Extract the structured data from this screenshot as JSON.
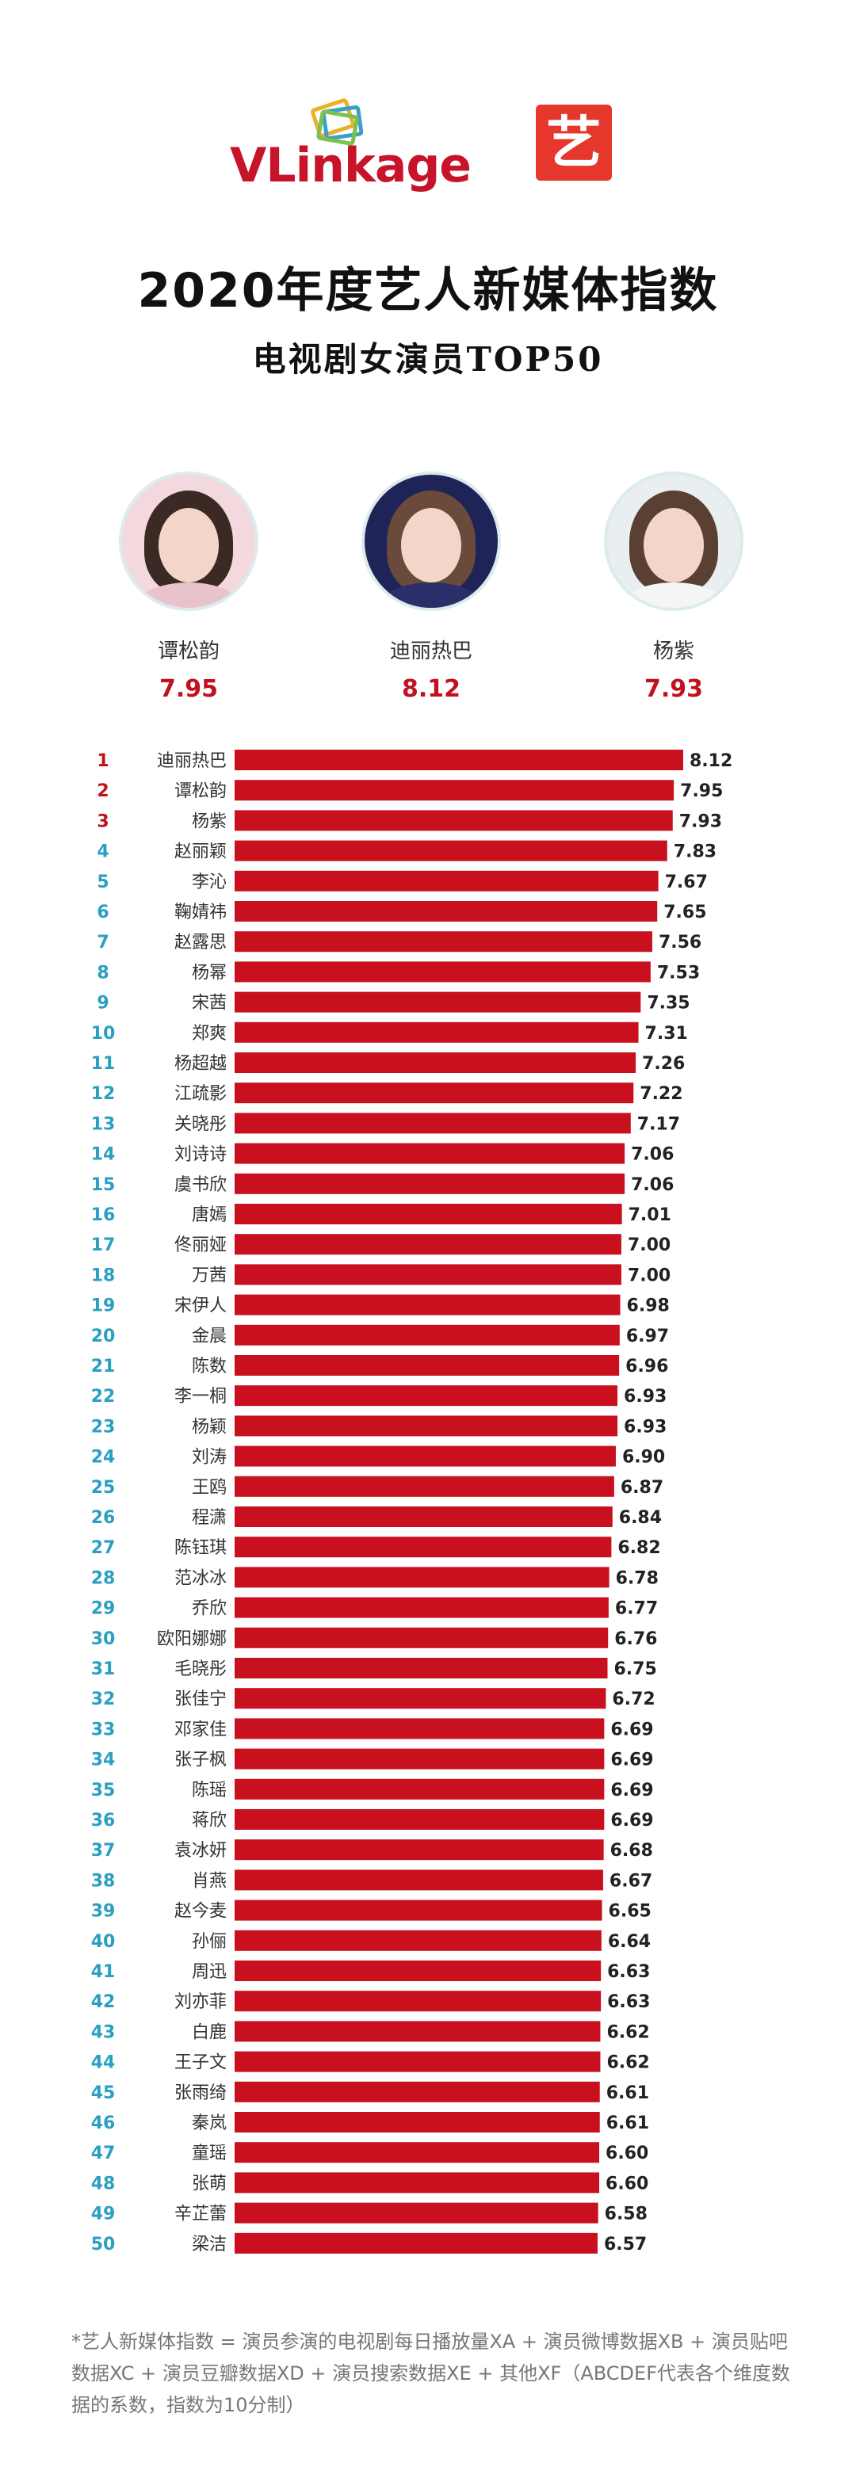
{
  "brand": {
    "logo_text": "VLinkage",
    "logo_mark_colors": [
      "#e8b12a",
      "#3aa0c8",
      "#7bc14b",
      "#e6372c"
    ],
    "partner_logo_char": "艺",
    "accent_color": "#c0111c"
  },
  "title": "2020年度艺人新媒体指数",
  "subtitle": "电视剧女演员TOP50",
  "podium": [
    {
      "name": "谭松韵",
      "score": "7.95",
      "place": 2,
      "hair": "#3b2a24",
      "bg": "#f3d8dd",
      "body": "#e9c3cc"
    },
    {
      "name": "迪丽热巴",
      "score": "8.12",
      "place": 1,
      "hair": "#6a4a3a",
      "bg": "#1e2458",
      "body": "#2a2f6a"
    },
    {
      "name": "杨紫",
      "score": "7.93",
      "place": 3,
      "hair": "#5a4032",
      "bg": "#e9eef0",
      "body": "#f5f5f5"
    }
  ],
  "chart_data": {
    "type": "bar",
    "orientation": "horizontal",
    "title": "电视剧女演员TOP50",
    "ranks": [
      1,
      2,
      3,
      4,
      5,
      6,
      7,
      8,
      9,
      10,
      11,
      12,
      13,
      14,
      15,
      16,
      17,
      18,
      19,
      20,
      21,
      22,
      23,
      24,
      25,
      26,
      27,
      28,
      29,
      30,
      31,
      32,
      33,
      34,
      35,
      36,
      37,
      38,
      39,
      40,
      41,
      42,
      43,
      44,
      45,
      46,
      47,
      48,
      49,
      50
    ],
    "categories": [
      "迪丽热巴",
      "谭松韵",
      "杨紫",
      "赵丽颖",
      "李沁",
      "鞠婧祎",
      "赵露思",
      "杨幂",
      "宋茜",
      "郑爽",
      "杨超越",
      "江疏影",
      "关晓彤",
      "刘诗诗",
      "虞书欣",
      "唐嫣",
      "佟丽娅",
      "万茜",
      "宋伊人",
      "金晨",
      "陈数",
      "李一桐",
      "杨颖",
      "刘涛",
      "王鸥",
      "程潇",
      "陈钰琪",
      "范冰冰",
      "乔欣",
      "欧阳娜娜",
      "毛晓彤",
      "张佳宁",
      "邓家佳",
      "张子枫",
      "陈瑶",
      "蒋欣",
      "袁冰妍",
      "肖燕",
      "赵今麦",
      "孙俪",
      "周迅",
      "刘亦菲",
      "白鹿",
      "王子文",
      "张雨绮",
      "秦岚",
      "童瑶",
      "张萌",
      "辛芷蕾",
      "梁洁"
    ],
    "values": [
      8.12,
      7.95,
      7.93,
      7.83,
      7.67,
      7.65,
      7.56,
      7.53,
      7.35,
      7.31,
      7.26,
      7.22,
      7.17,
      7.06,
      7.06,
      7.01,
      7.0,
      7.0,
      6.98,
      6.97,
      6.96,
      6.93,
      6.93,
      6.9,
      6.87,
      6.84,
      6.82,
      6.78,
      6.77,
      6.76,
      6.75,
      6.72,
      6.69,
      6.69,
      6.69,
      6.69,
      6.68,
      6.67,
      6.65,
      6.64,
      6.63,
      6.63,
      6.62,
      6.62,
      6.61,
      6.61,
      6.6,
      6.6,
      6.58,
      6.57
    ],
    "value_labels": [
      "8.12",
      "7.95",
      "7.93",
      "7.83",
      "7.67",
      "7.65",
      "7.56",
      "7.53",
      "7.35",
      "7.31",
      "7.26",
      "7.22",
      "7.17",
      "7.06",
      "7.06",
      "7.01",
      "7.00",
      "7.00",
      "6.98",
      "6.97",
      "6.96",
      "6.93",
      "6.93",
      "6.90",
      "6.87",
      "6.84",
      "6.82",
      "6.78",
      "6.77",
      "6.76",
      "6.75",
      "6.72",
      "6.69",
      "6.69",
      "6.69",
      "6.69",
      "6.68",
      "6.67",
      "6.65",
      "6.64",
      "6.63",
      "6.63",
      "6.62",
      "6.62",
      "6.61",
      "6.61",
      "6.60",
      "6.60",
      "6.58",
      "6.57"
    ],
    "bar_color": "#c8101e",
    "rank_colors": {
      "top3": "#c0111c",
      "rest": "#2a9fc2"
    },
    "grid": false,
    "legend": "none"
  },
  "footnote": "*艺人新媒体指数 = 演员参演的电视剧每日播放量XA + 演员微博数据XB + 演员贴吧数据XC + 演员豆瓣数据XD + 演员搜索数据XE + 其他XF（ABCDEF代表各个维度数据的系数，指数为10分制）"
}
